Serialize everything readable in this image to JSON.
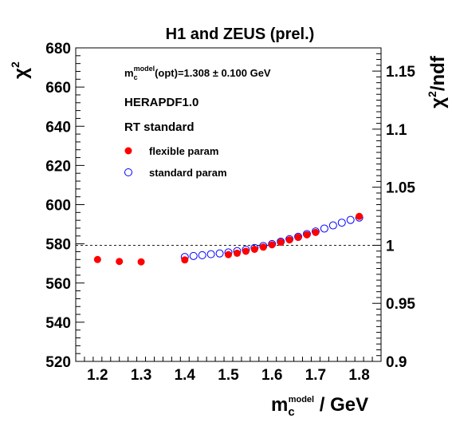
{
  "chart_data": {
    "type": "scatter",
    "title": "H1 and ZEUS (prel.)",
    "annotations": {
      "opt_prefix": "m",
      "opt_sub": "c",
      "opt_sup": "model",
      "opt_suffix": "(opt)=1.308 ± 0.100 GeV",
      "pdf": "HERAPDF1.0",
      "scheme": "RT standard"
    },
    "xlabel": {
      "main": "m",
      "sub": "c",
      "sup": "model",
      "suffix": " / GeV"
    },
    "ylabel": {
      "main": "χ",
      "sup": "2"
    },
    "y2label": {
      "main": "χ",
      "sup": "2",
      "suffix": "/ndf"
    },
    "xlim": [
      1.15,
      1.85
    ],
    "ylim": [
      520,
      680
    ],
    "y2lim": [
      0.9,
      1.17
    ],
    "x_ticks": [
      "1.2",
      "1.3",
      "1.4",
      "1.5",
      "1.6",
      "1.7",
      "1.8"
    ],
    "y_ticks": [
      "520",
      "540",
      "560",
      "580",
      "600",
      "620",
      "640",
      "660",
      "680"
    ],
    "y2_ticks": [
      "0.9",
      "0.95",
      "1",
      "1.05",
      "1.1",
      "1.15"
    ],
    "reference_line": {
      "y2": 1.0,
      "style": "dashed"
    },
    "legend_position": "top-left",
    "series": [
      {
        "name": "flexible param",
        "marker": "filled-circle",
        "color": "#ff0000",
        "x": [
          1.2,
          1.25,
          1.3,
          1.4,
          1.5,
          1.52,
          1.54,
          1.56,
          1.58,
          1.6,
          1.62,
          1.64,
          1.66,
          1.68,
          1.7,
          1.8
        ],
        "y": [
          572.0,
          571.0,
          570.8,
          571.8,
          574.5,
          575.2,
          576.2,
          577.2,
          578.3,
          579.5,
          580.8,
          582.0,
          583.3,
          584.6,
          585.8,
          594.0
        ]
      },
      {
        "name": "standard param",
        "marker": "open-circle",
        "color": "#0000ff",
        "x": [
          1.4,
          1.42,
          1.44,
          1.46,
          1.48,
          1.5,
          1.52,
          1.54,
          1.56,
          1.58,
          1.6,
          1.62,
          1.64,
          1.66,
          1.68,
          1.7,
          1.72,
          1.74,
          1.76,
          1.78,
          1.8
        ],
        "y": [
          573.3,
          573.8,
          574.2,
          574.7,
          575.1,
          575.6,
          576.3,
          577.0,
          577.9,
          578.9,
          579.9,
          581.1,
          582.4,
          583.6,
          585.0,
          586.3,
          587.8,
          589.4,
          590.8,
          592.2,
          593.4
        ]
      }
    ]
  }
}
